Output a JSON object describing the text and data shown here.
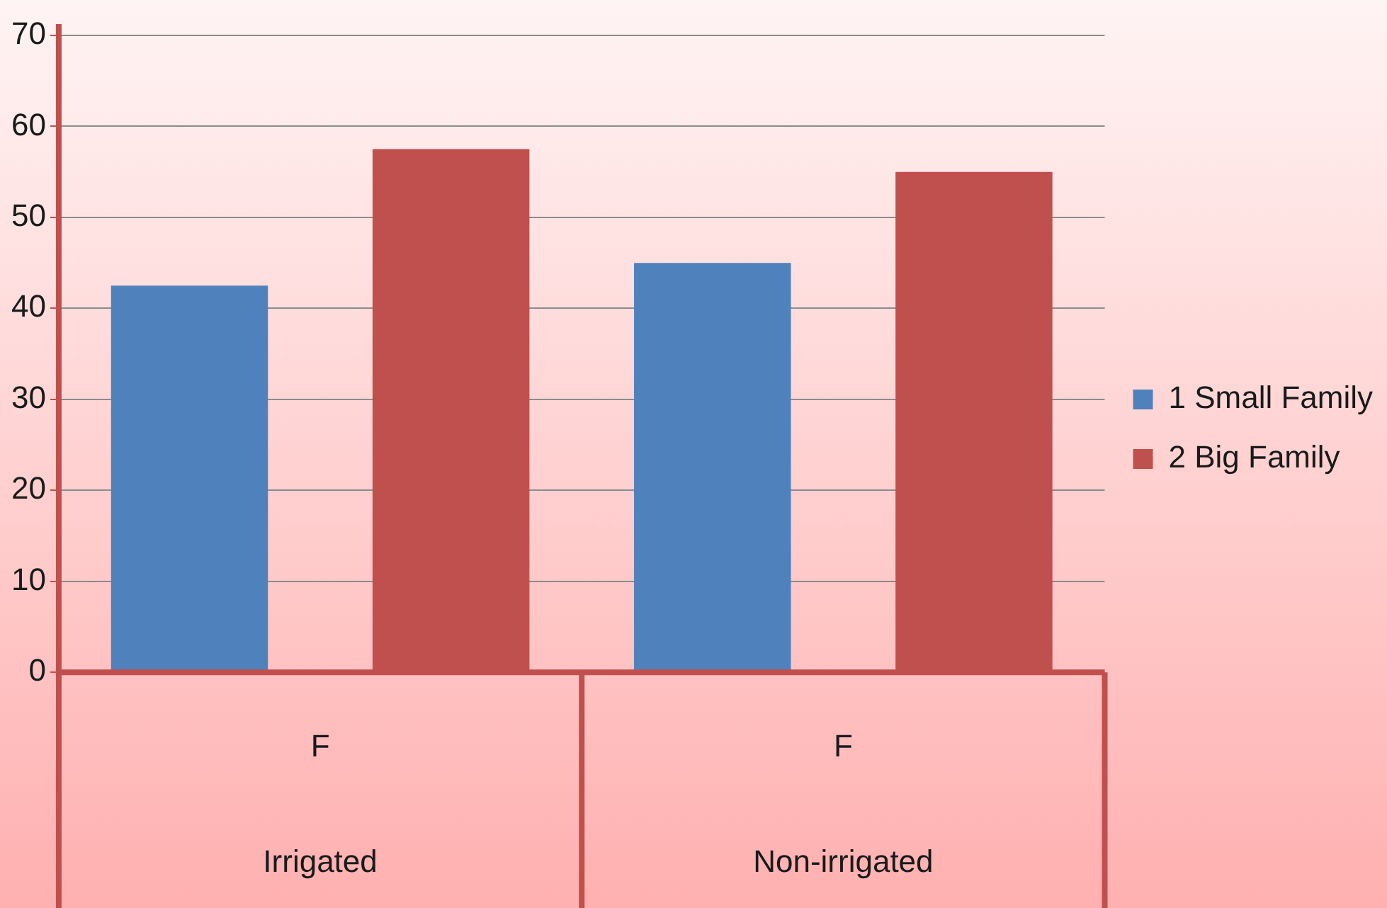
{
  "chart_data": {
    "type": "bar",
    "categories": [
      "F",
      "F"
    ],
    "series": [
      {
        "name": "1 Small Family",
        "color": "#4f81bd",
        "values": [
          42.5,
          45
        ]
      },
      {
        "name": "2 Big Family",
        "color": "#c0504d",
        "values": [
          57.5,
          55
        ]
      }
    ],
    "ylim": [
      0,
      70
    ],
    "yticks": [
      0,
      10,
      20,
      30,
      40,
      50,
      60,
      70
    ],
    "grid": "y",
    "legend": "right",
    "annotations": [
      "Irrigated",
      "Non-irrigated"
    ]
  }
}
